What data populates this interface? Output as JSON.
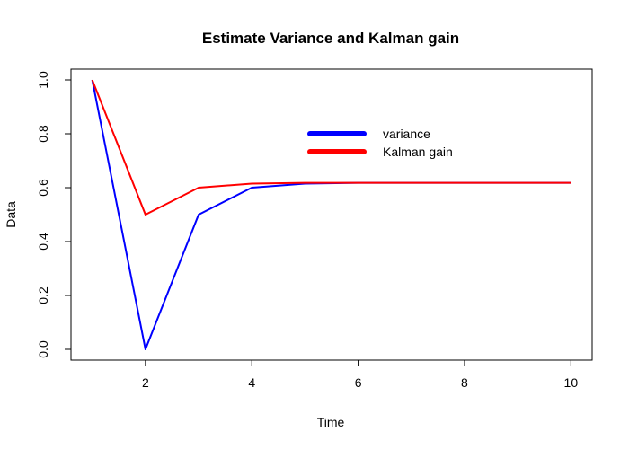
{
  "chart_data": {
    "type": "line",
    "title": "Estimate Variance and Kalman gain",
    "xlabel": "Time",
    "ylabel": "Data",
    "xlim": [
      0.6,
      10.4
    ],
    "ylim": [
      -0.04,
      1.04
    ],
    "x_ticks": [
      2,
      4,
      6,
      8,
      10
    ],
    "y_ticks": [
      0.0,
      0.2,
      0.4,
      0.6,
      0.8,
      1.0
    ],
    "x_tick_labels": [
      "2",
      "4",
      "6",
      "8",
      "10"
    ],
    "y_tick_labels": [
      "0.0",
      "0.2",
      "0.4",
      "0.6",
      "0.8",
      "1.0"
    ],
    "grid": false,
    "legend_position": "top-center",
    "x": [
      1,
      2,
      3,
      4,
      5,
      6,
      7,
      8,
      9,
      10
    ],
    "series": [
      {
        "name": "variance",
        "color": "#0000ff",
        "values": [
          1.0,
          0.0,
          0.5,
          0.6,
          0.615,
          0.618,
          0.618,
          0.618,
          0.618,
          0.618
        ]
      },
      {
        "name": "Kalman gain",
        "color": "#ff0000",
        "values": [
          1.0,
          0.5,
          0.6,
          0.615,
          0.618,
          0.618,
          0.618,
          0.618,
          0.618,
          0.618
        ]
      }
    ]
  }
}
